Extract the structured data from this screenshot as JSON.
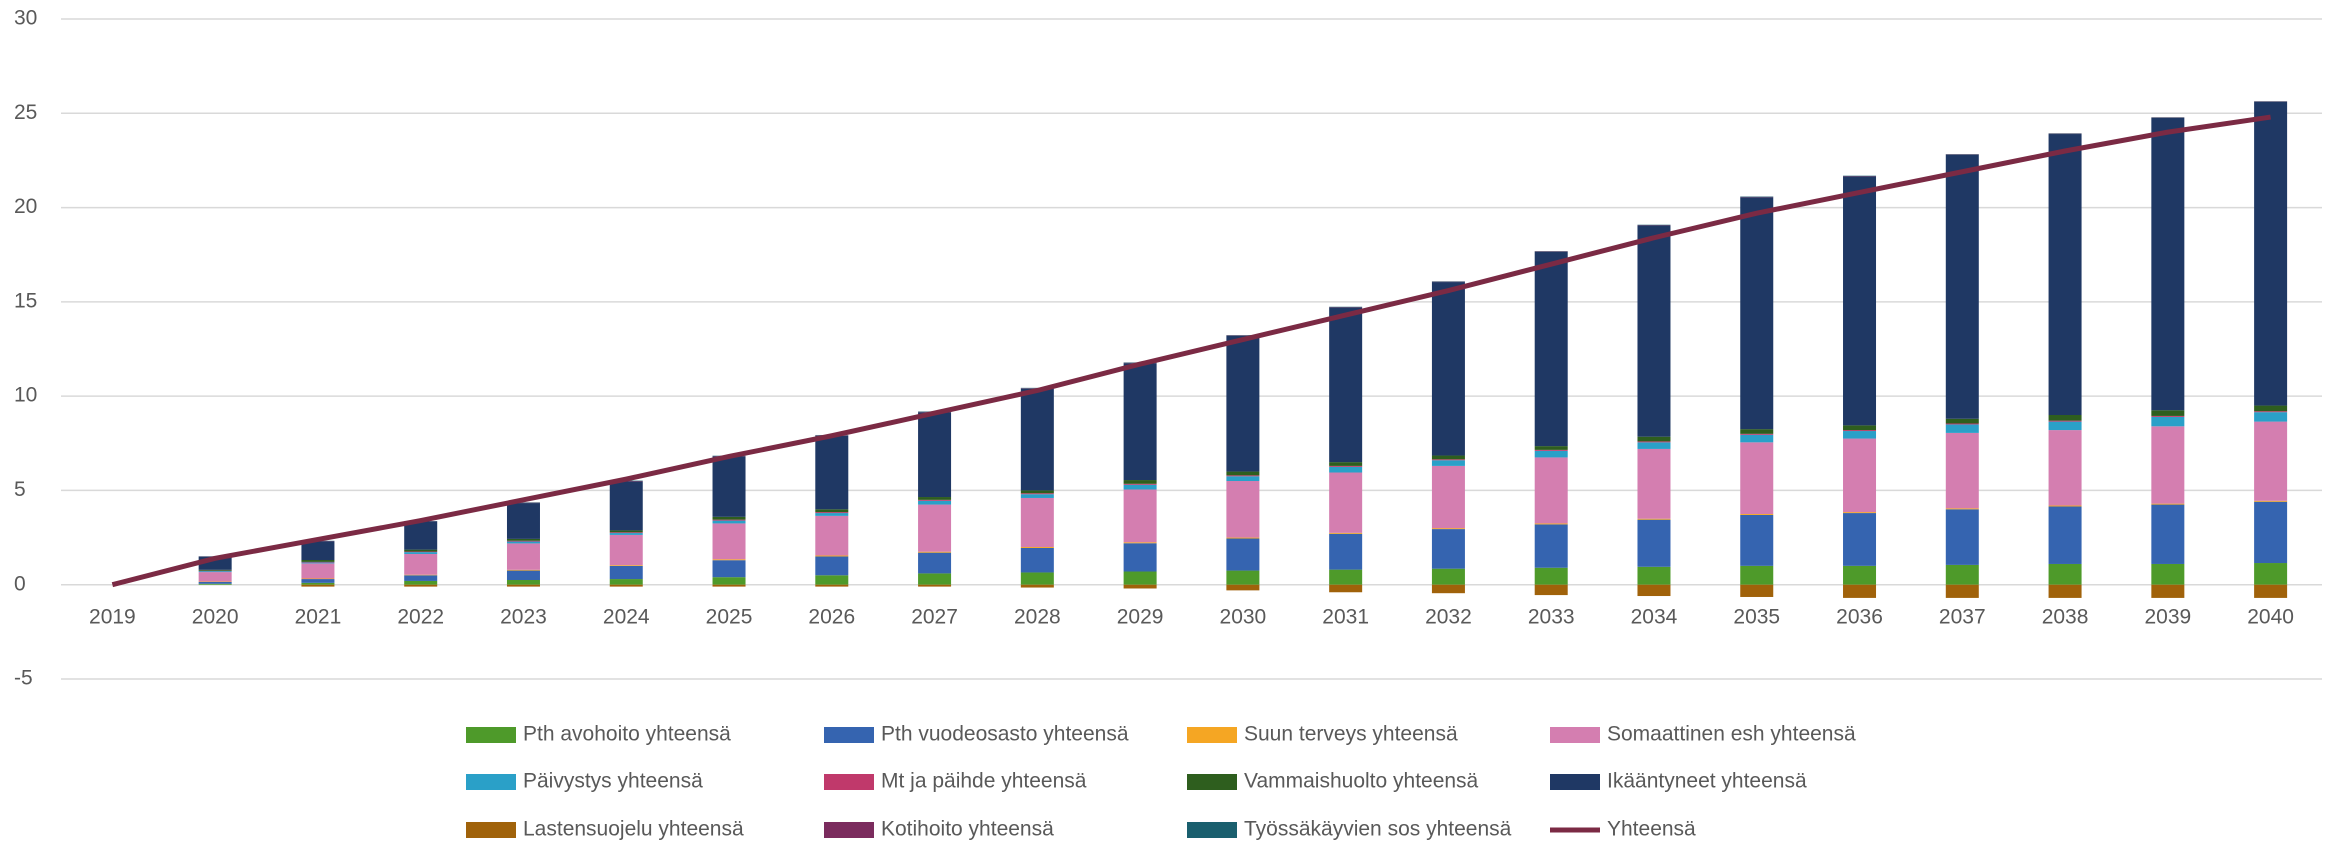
{
  "chart_data": {
    "type": "bar",
    "stacked": true,
    "grid": true,
    "categories": [
      "2019",
      "2020",
      "2021",
      "2022",
      "2023",
      "2024",
      "2025",
      "2026",
      "2027",
      "2028",
      "2029",
      "2030",
      "2031",
      "2032",
      "2033",
      "2034",
      "2035",
      "2036",
      "2037",
      "2038",
      "2039",
      "2040"
    ],
    "ylim": [
      -5,
      30
    ],
    "yticks": [
      -5,
      0,
      5,
      10,
      15,
      20,
      25,
      30
    ],
    "legend": "bottom",
    "series": [
      {
        "name": "Pth avohoito yhteensä",
        "color": "#4e9a2a",
        "values": [
          0,
          0.05,
          0.1,
          0.2,
          0.25,
          0.3,
          0.4,
          0.5,
          0.6,
          0.65,
          0.7,
          0.75,
          0.8,
          0.85,
          0.9,
          0.95,
          1.0,
          1.0,
          1.05,
          1.1,
          1.1,
          1.15
        ]
      },
      {
        "name": "Pth vuodeosasto yhteensä",
        "color": "#3564b0",
        "values": [
          0,
          0.1,
          0.2,
          0.3,
          0.5,
          0.7,
          0.9,
          1.0,
          1.1,
          1.3,
          1.5,
          1.7,
          1.9,
          2.1,
          2.3,
          2.5,
          2.7,
          2.8,
          2.95,
          3.05,
          3.15,
          3.25
        ]
      },
      {
        "name": "Suun terveys yhteensä",
        "color": "#f5a623",
        "values": [
          0,
          0.02,
          0.03,
          0.03,
          0.04,
          0.04,
          0.05,
          0.05,
          0.05,
          0.05,
          0.05,
          0.05,
          0.05,
          0.05,
          0.05,
          0.05,
          0.05,
          0.05,
          0.05,
          0.05,
          0.05,
          0.05
        ]
      },
      {
        "name": "Somaattinen esh yhteensä",
        "color": "#d47eb0",
        "values": [
          0,
          0.5,
          0.8,
          1.1,
          1.4,
          1.6,
          1.9,
          2.1,
          2.5,
          2.6,
          2.8,
          3.0,
          3.2,
          3.3,
          3.5,
          3.7,
          3.8,
          3.9,
          4.0,
          4.0,
          4.1,
          4.2
        ]
      },
      {
        "name": "Päivystys yhteensä",
        "color": "#2aa0c8",
        "values": [
          0,
          0.05,
          0.05,
          0.1,
          0.1,
          0.1,
          0.15,
          0.15,
          0.2,
          0.2,
          0.25,
          0.25,
          0.3,
          0.3,
          0.35,
          0.35,
          0.4,
          0.4,
          0.45,
          0.45,
          0.5,
          0.5
        ]
      },
      {
        "name": "Mt ja päihde yhteensä",
        "color": "#c0396b",
        "values": [
          0,
          0.02,
          0.03,
          0.03,
          0.04,
          0.04,
          0.05,
          0.05,
          0.05,
          0.05,
          0.05,
          0.05,
          0.05,
          0.05,
          0.05,
          0.05,
          0.05,
          0.05,
          0.05,
          0.05,
          0.05,
          0.05
        ]
      },
      {
        "name": "Vammaishuolto yhteensä",
        "color": "#2e5e1e",
        "values": [
          0,
          0.05,
          0.1,
          0.1,
          0.1,
          0.1,
          0.15,
          0.15,
          0.15,
          0.15,
          0.2,
          0.2,
          0.2,
          0.2,
          0.2,
          0.25,
          0.25,
          0.25,
          0.25,
          0.3,
          0.3,
          0.3
        ]
      },
      {
        "name": "Ikääntyneet yhteensä",
        "color": "#1f3864",
        "values": [
          0,
          0.7,
          1.0,
          1.5,
          1.9,
          2.6,
          3.2,
          3.9,
          4.5,
          5.4,
          6.2,
          7.2,
          8.2,
          9.2,
          10.3,
          11.2,
          12.3,
          13.2,
          14.0,
          14.9,
          15.5,
          16.1
        ]
      },
      {
        "name": "Lastensuojelu yhteensä",
        "color": "#a0620a",
        "values": [
          0,
          0,
          -0.1,
          -0.1,
          -0.1,
          -0.1,
          -0.1,
          -0.1,
          -0.1,
          -0.15,
          -0.2,
          -0.3,
          -0.4,
          -0.45,
          -0.55,
          -0.6,
          -0.65,
          -0.7,
          -0.7,
          -0.7,
          -0.7,
          -0.7
        ]
      },
      {
        "name": "Kotihoito yhteensä",
        "color": "#7b2c5e",
        "values": [
          0,
          0.01,
          0.01,
          0.01,
          0.02,
          0.02,
          0.02,
          0.02,
          0.02,
          0.02,
          0.02,
          0.02,
          0.02,
          0.02,
          0.02,
          0.02,
          0.02,
          0.02,
          0.02,
          0.02,
          0.02,
          0.02
        ]
      },
      {
        "name": "Työssäkäyvien sos yhteensä",
        "color": "#1a5f6e",
        "values": [
          0,
          0.01,
          0.01,
          0.01,
          0.02,
          0.02,
          0.02,
          0.02,
          0.02,
          0.02,
          0.02,
          0.02,
          0.02,
          0.02,
          0.02,
          0.02,
          0.02,
          0.02,
          0.02,
          0.02,
          0.02,
          0.02
        ]
      },
      {
        "name": "Yhteensä",
        "color": "#7b2a44",
        "type": "line",
        "values": [
          0,
          1.4,
          2.4,
          3.4,
          4.5,
          5.6,
          6.8,
          7.9,
          9.1,
          10.3,
          11.7,
          13.0,
          14.3,
          15.6,
          17.0,
          18.4,
          19.7,
          20.8,
          21.9,
          23.0,
          24.0,
          24.8
        ]
      }
    ]
  }
}
